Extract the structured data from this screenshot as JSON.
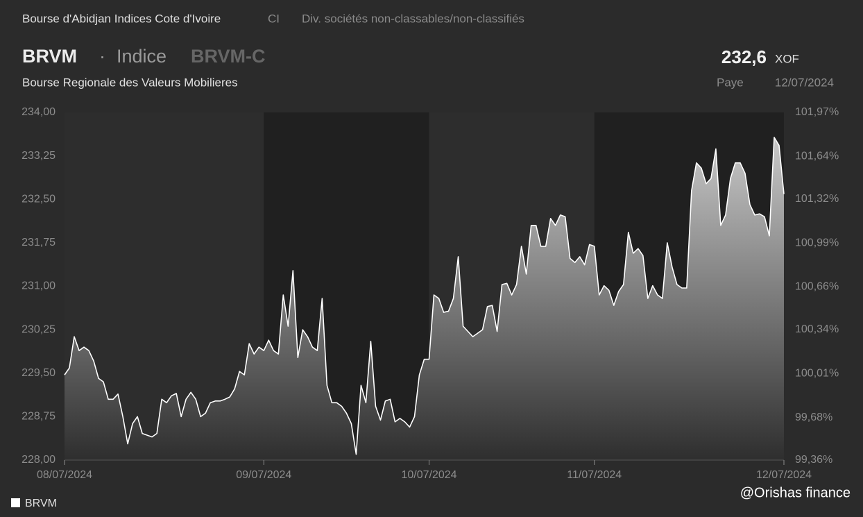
{
  "header": {
    "exchange": "Bourse d'Abidjan Indices Cote d'Ivoire",
    "country": "CI",
    "sector": "Div. sociétés non-classables/non-classifiés",
    "ticker": "BRVM",
    "separator": "·",
    "kind": "Indice",
    "symbol": "BRVM-C",
    "name": "Bourse Regionale des Valeurs Mobilieres",
    "price": "232,6",
    "currency": "XOF",
    "status": "Paye",
    "date": "12/07/2024"
  },
  "watermark": "@Orishas finance",
  "chart_data": {
    "type": "area",
    "grid": false,
    "categories": [
      "08/07/2024",
      null,
      null,
      null,
      null,
      null,
      null,
      null,
      null,
      null,
      null,
      null,
      null,
      null,
      null,
      null,
      null,
      null,
      null,
      null,
      null,
      null,
      null,
      null,
      null,
      null,
      null,
      null,
      null,
      null,
      null,
      null,
      null,
      null,
      null,
      null,
      null,
      null,
      null,
      null,
      null,
      "09/07/2024",
      null,
      null,
      null,
      null,
      null,
      null,
      null,
      null,
      null,
      null,
      null,
      null,
      null,
      null,
      null,
      null,
      null,
      null,
      null,
      null,
      null,
      null,
      null,
      null,
      null,
      null,
      null,
      null,
      null,
      null,
      null,
      null,
      null,
      "10/07/2024",
      null,
      null,
      null,
      null,
      null,
      null,
      null,
      null,
      null,
      null,
      null,
      null,
      null,
      null,
      null,
      null,
      null,
      null,
      null,
      null,
      null,
      null,
      null,
      null,
      null,
      null,
      null,
      null,
      null,
      null,
      null,
      null,
      null,
      "11/07/2024",
      null,
      null,
      null,
      null,
      null,
      null,
      null,
      null,
      null,
      null,
      null,
      null,
      null,
      null,
      null,
      null,
      null,
      null,
      null,
      null,
      null,
      null,
      null,
      null,
      null,
      null,
      null,
      null,
      null,
      null,
      null,
      null,
      null,
      null,
      null,
      null,
      null,
      null,
      "12/07/2024"
    ],
    "series": [
      {
        "name": "BRVM",
        "color": "#ffffff",
        "values": [
          229.47,
          229.59,
          230.13,
          229.89,
          229.95,
          229.89,
          229.71,
          229.41,
          229.35,
          229.05,
          229.05,
          229.14,
          228.75,
          228.28,
          228.63,
          228.75,
          228.46,
          228.43,
          228.4,
          228.46,
          229.05,
          228.99,
          229.11,
          229.15,
          228.75,
          229.05,
          229.17,
          229.05,
          228.75,
          228.81,
          228.99,
          229.02,
          229.02,
          229.05,
          229.09,
          229.23,
          229.53,
          229.47,
          230.01,
          229.83,
          229.95,
          229.89,
          230.07,
          229.89,
          229.83,
          230.85,
          230.31,
          231.27,
          229.77,
          230.25,
          230.13,
          229.95,
          229.89,
          230.79,
          229.29,
          228.99,
          228.99,
          228.93,
          228.81,
          228.63,
          228.1,
          229.29,
          228.99,
          230.05,
          228.93,
          228.69,
          229.02,
          229.05,
          228.66,
          228.72,
          228.66,
          228.57,
          228.75,
          229.47,
          229.74,
          229.74,
          230.85,
          230.79,
          230.55,
          230.57,
          230.79,
          231.51,
          230.31,
          230.22,
          230.13,
          230.19,
          230.25,
          230.65,
          230.67,
          230.22,
          231.03,
          231.05,
          230.85,
          231.03,
          231.69,
          231.21,
          232.05,
          232.05,
          231.69,
          231.69,
          232.17,
          232.05,
          232.23,
          232.2,
          231.48,
          231.41,
          231.51,
          231.37,
          231.72,
          231.69,
          230.85,
          231.01,
          230.93,
          230.67,
          230.91,
          231.03,
          231.93,
          231.57,
          231.65,
          231.53,
          230.79,
          231.01,
          230.85,
          230.79,
          231.75,
          231.33,
          231.03,
          230.97,
          230.97,
          232.65,
          233.13,
          233.04,
          232.77,
          232.86,
          233.37,
          232.05,
          232.23,
          232.86,
          233.13,
          233.13,
          232.95,
          232.41,
          232.23,
          232.25,
          232.2,
          231.87,
          233.57,
          233.43,
          232.59
        ]
      }
    ],
    "ylim": [
      228,
      234
    ],
    "yticks": [
      {
        "value": 228,
        "label": "228,00"
      },
      {
        "value": 228.75,
        "label": "228,75"
      },
      {
        "value": 229.5,
        "label": "229,50"
      },
      {
        "value": 230.25,
        "label": "230,25"
      },
      {
        "value": 231,
        "label": "231,00"
      },
      {
        "value": 231.75,
        "label": "231,75"
      },
      {
        "value": 232.5,
        "label": "232,50"
      },
      {
        "value": 233.25,
        "label": "233,25"
      },
      {
        "value": 234,
        "label": "234,00"
      }
    ],
    "y2lim": [
      99.36,
      101.97
    ],
    "y2ticks": [
      {
        "value": 99.36,
        "label": "99,36%"
      },
      {
        "value": 99.68,
        "label": "99,68%"
      },
      {
        "value": 100.01,
        "label": "100,01%"
      },
      {
        "value": 100.34,
        "label": "100,34%"
      },
      {
        "value": 100.66,
        "label": "100,66%"
      },
      {
        "value": 100.99,
        "label": "100,99%"
      },
      {
        "value": 101.32,
        "label": "101,32%"
      },
      {
        "value": 101.64,
        "label": "101,64%"
      },
      {
        "value": 101.97,
        "label": "101,97%"
      }
    ]
  }
}
